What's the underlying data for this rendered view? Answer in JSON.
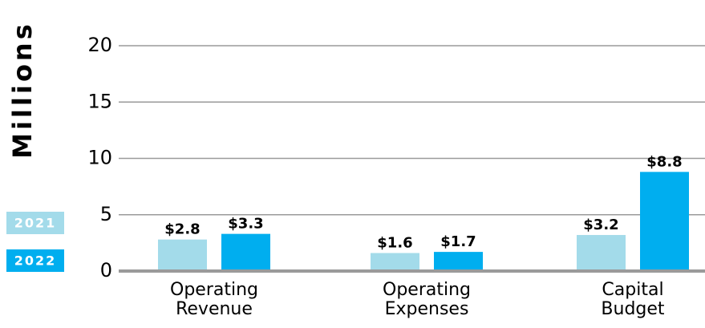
{
  "chart_data": {
    "type": "bar",
    "ylabel": "Millions",
    "categories": [
      "Operating Revenue",
      "Operating Expenses",
      "Capital Budget"
    ],
    "series": [
      {
        "name": "2021",
        "color": "#a3dbea",
        "values": [
          2.8,
          1.6,
          3.2
        ],
        "value_labels": [
          "$2.8",
          "$1.6",
          "$3.2"
        ]
      },
      {
        "name": "2022",
        "color": "#00aeef",
        "values": [
          3.3,
          1.7,
          8.8
        ],
        "value_labels": [
          "$3.3",
          "$1.7",
          "$8.8"
        ]
      }
    ],
    "ylim": [
      0,
      20
    ],
    "yticks": [
      0,
      5,
      10,
      15,
      20
    ],
    "grid": true
  }
}
